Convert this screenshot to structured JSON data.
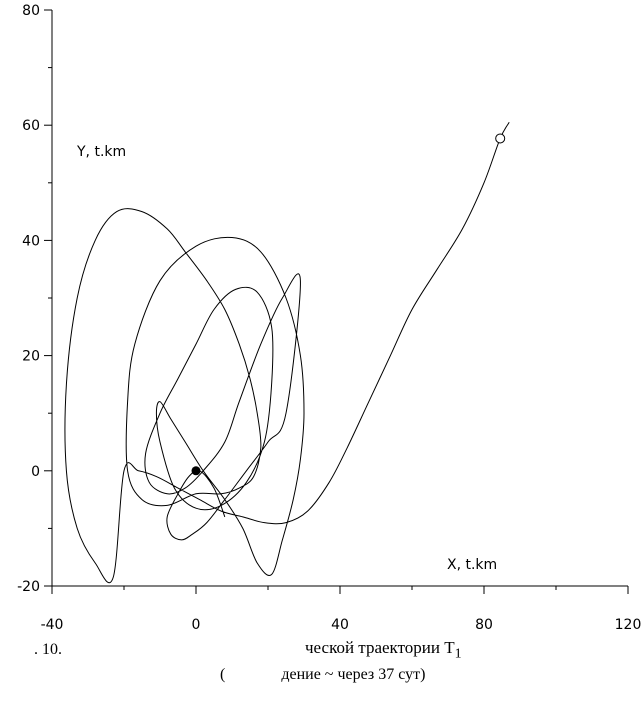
{
  "chart_data": {
    "type": "line",
    "xlabel": "X, t.km",
    "ylabel": "Y, t.km",
    "xlim": [
      -40,
      120
    ],
    "ylim": [
      -20,
      80
    ],
    "x_ticks": [
      "-40",
      "0",
      "40",
      "80",
      "120"
    ],
    "x_tick_values": [
      -40,
      0,
      40,
      80,
      120
    ],
    "y_ticks": [
      "-20",
      "0",
      "20",
      "40",
      "60",
      "80"
    ],
    "y_tick_values": [
      -20,
      0,
      20,
      40,
      60,
      80
    ],
    "grid": false,
    "series": [
      {
        "x": [
          87,
          84.5,
          80,
          74,
          67,
          60,
          54,
          48,
          42,
          37,
          31,
          25,
          19,
          13,
          7,
          1,
          -5,
          -11,
          -16,
          -20,
          -23,
          -28,
          -33,
          -36,
          -36,
          -33,
          -28,
          -22,
          -15,
          -8,
          -3,
          3,
          8,
          12,
          15,
          17,
          18,
          16,
          12,
          7,
          0,
          -8,
          -15,
          -19,
          -19,
          -17,
          -10,
          0,
          10,
          18,
          25,
          29,
          30,
          29,
          27,
          24,
          21,
          17,
          13,
          8,
          2,
          -3,
          -7,
          -10,
          -11,
          -10,
          -6,
          0,
          7,
          14,
          19,
          21,
          21,
          17,
          11,
          5,
          0,
          -5,
          -10,
          -14,
          -13,
          -8,
          -3,
          2,
          8,
          12,
          18,
          24,
          29,
          25,
          20,
          14,
          8,
          3,
          -1,
          -4,
          -7,
          -8,
          -5,
          -2,
          1,
          5,
          8
        ],
        "y": [
          60.5,
          57.7,
          50,
          42,
          35,
          28,
          20,
          12,
          4,
          -2,
          -7,
          -9,
          -9,
          -8,
          -7,
          -5,
          -3,
          -1,
          0,
          0,
          -18.5,
          -16,
          -10,
          0,
          15,
          30,
          40,
          45,
          45,
          42,
          38,
          33,
          28,
          22,
          16,
          10,
          4,
          -1,
          -3,
          -4,
          -4,
          -6,
          -5,
          0,
          12,
          22,
          33,
          39,
          40.5,
          38,
          30,
          20,
          10,
          2,
          -5,
          -12,
          -18,
          -16,
          -10,
          -5,
          0,
          5,
          9,
          12,
          10,
          5,
          -3,
          -6.5,
          -6,
          -2,
          5,
          15,
          25,
          31,
          31.5,
          28,
          22,
          16,
          10,
          3,
          -2,
          -4,
          -3,
          0,
          5,
          12,
          22,
          30,
          33,
          10,
          5,
          0,
          -5,
          -9,
          -11,
          -12,
          -11,
          -8,
          -4,
          -1,
          0,
          -3,
          -8
        ]
      }
    ],
    "markers": [
      {
        "type": "filled-circle",
        "x": 0,
        "y": 0
      },
      {
        "type": "open-circle",
        "x": 84.5,
        "y": 57.7
      }
    ]
  },
  "caption": {
    "figure": ". 10.",
    "title_main": "ческой траектории T",
    "title_sub": "1",
    "subtitle": "(              дение ~ через 37 сут)"
  }
}
